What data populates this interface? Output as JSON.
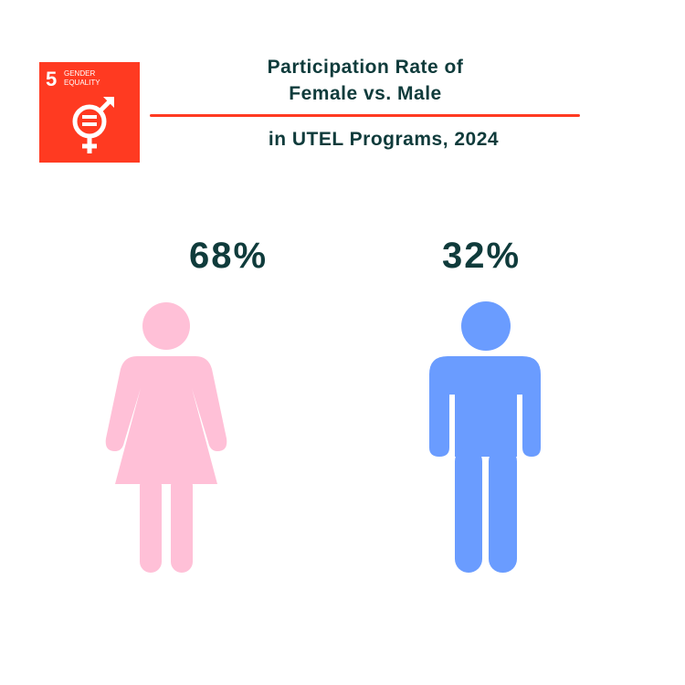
{
  "badge": {
    "number": "5",
    "line1": "GENDER",
    "line2": "EQUALITY"
  },
  "title": {
    "line1": "Participation Rate of",
    "line2": "Female vs. Male",
    "line3": "in UTEL Programs, 2024"
  },
  "colors": {
    "accent": "#ff3a21",
    "text": "#0f3b3b",
    "female": "#ffc0d7",
    "male": "#6a9cff"
  },
  "chart_data": {
    "type": "pictograph",
    "title": "Participation Rate of Female vs. Male in UTEL Programs, 2024",
    "categories": [
      "Female",
      "Male"
    ],
    "values": [
      68,
      32
    ],
    "labels": [
      "68%",
      "32%"
    ],
    "unit": "%"
  }
}
